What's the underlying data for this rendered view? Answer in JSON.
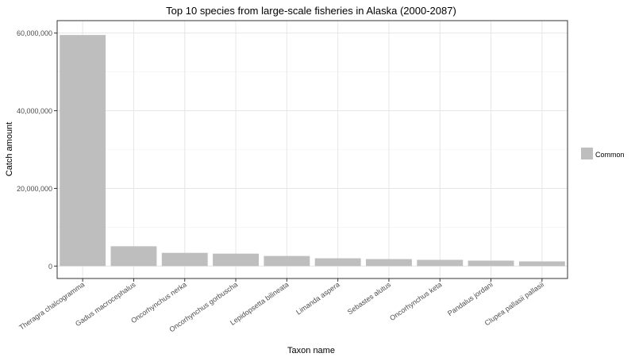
{
  "chart_data": {
    "type": "bar",
    "title": "Top 10 species from large-scale fisheries in Alaska (2000-2087)",
    "xlabel": "Taxon name",
    "ylabel": "Catch amount",
    "ylim": [
      -3200000,
      63200000
    ],
    "yticks": [
      0,
      20000000,
      40000000,
      60000000
    ],
    "ytick_labels": [
      "0",
      "20,000,000",
      "40,000,000",
      "60,000,000"
    ],
    "categories": [
      "Theragra chalcogramma",
      "Gadus macrocephalus",
      "Oncorhynchus nerka",
      "Oncorhynchus gorbuscha",
      "Lepidopsetta bilineata",
      "Limanda aspera",
      "Sebastes alutus",
      "Oncorhynchus keta",
      "Pandalus jordani",
      "Clupea pallasii pallasii"
    ],
    "series": [
      {
        "name": "Common",
        "color": "#bebebe",
        "values": [
          59500000,
          5100000,
          3400000,
          3200000,
          2600000,
          2000000,
          1800000,
          1600000,
          1400000,
          1200000
        ]
      }
    ],
    "legend_position": "right",
    "grid": true
  }
}
